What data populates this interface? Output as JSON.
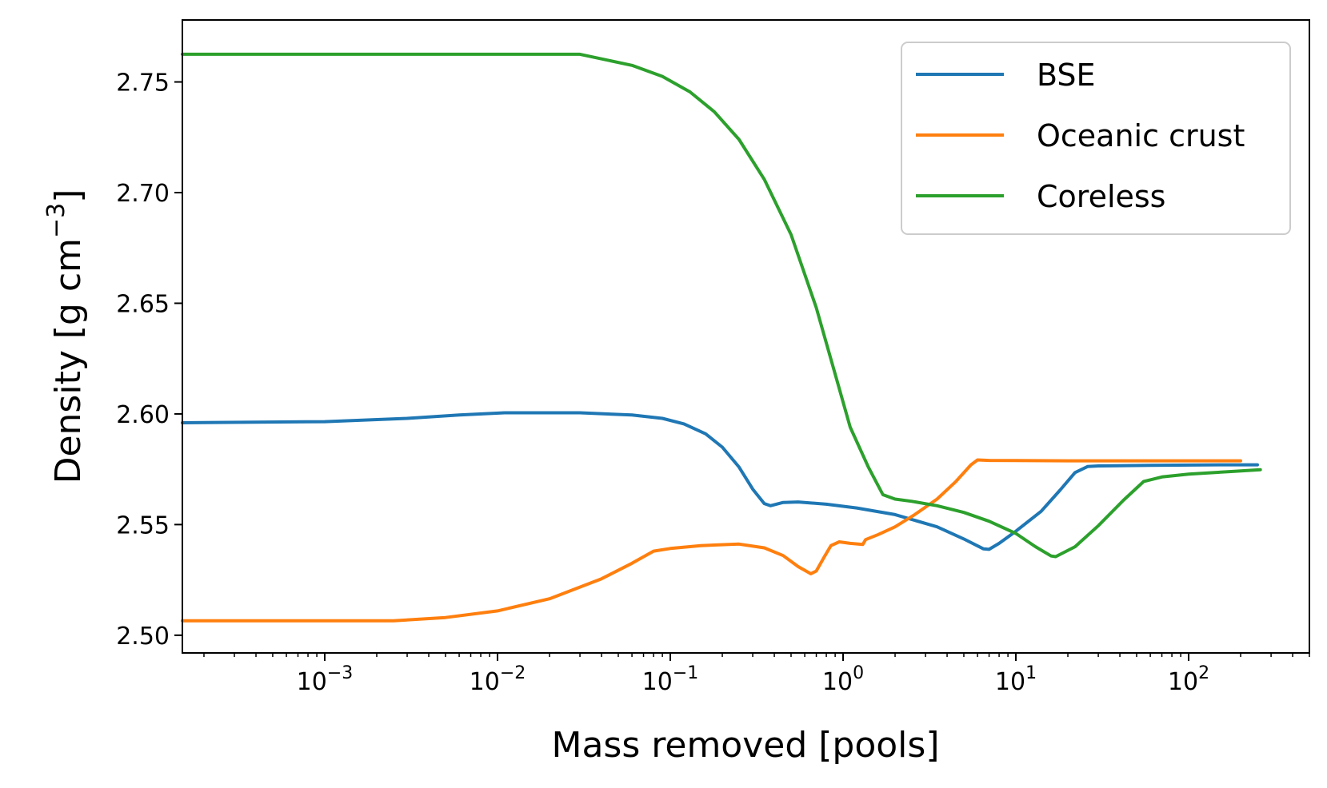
{
  "chart_data": {
    "type": "line",
    "title": "",
    "xlabel": "Mass removed [pools]",
    "ylabel": "Density [g cm",
    "ylabel_exponent": "−3",
    "ylabel_close": "]",
    "xscale": "log",
    "xlim": [
      0.00015,
      500
    ],
    "ylim": [
      2.492,
      2.778
    ],
    "grid": false,
    "legend_position": "top-right",
    "x_ticks": [
      {
        "value": 0.001,
        "base": "10",
        "exp": "−3"
      },
      {
        "value": 0.01,
        "base": "10",
        "exp": "−2"
      },
      {
        "value": 0.1,
        "base": "10",
        "exp": "−1"
      },
      {
        "value": 1,
        "base": "10",
        "exp": "0"
      },
      {
        "value": 10,
        "base": "10",
        "exp": "1"
      },
      {
        "value": 100,
        "base": "10",
        "exp": "2"
      }
    ],
    "y_ticks": [
      {
        "value": 2.5,
        "label": "2.50"
      },
      {
        "value": 2.55,
        "label": "2.55"
      },
      {
        "value": 2.6,
        "label": "2.60"
      },
      {
        "value": 2.65,
        "label": "2.65"
      },
      {
        "value": 2.7,
        "label": "2.70"
      },
      {
        "value": 2.75,
        "label": "2.75"
      }
    ],
    "series": [
      {
        "name": "BSE",
        "color": "#1f77b4",
        "points": [
          [
            0.00015,
            2.596
          ],
          [
            0.001,
            2.5965
          ],
          [
            0.003,
            2.598
          ],
          [
            0.006,
            2.5995
          ],
          [
            0.011,
            2.6005
          ],
          [
            0.03,
            2.6005
          ],
          [
            0.06,
            2.5995
          ],
          [
            0.09,
            2.598
          ],
          [
            0.12,
            2.5955
          ],
          [
            0.16,
            2.591
          ],
          [
            0.2,
            2.585
          ],
          [
            0.25,
            2.576
          ],
          [
            0.3,
            2.566
          ],
          [
            0.35,
            2.5595
          ],
          [
            0.38,
            2.5585
          ],
          [
            0.45,
            2.56
          ],
          [
            0.55,
            2.5602
          ],
          [
            0.8,
            2.5592
          ],
          [
            1.2,
            2.5575
          ],
          [
            2,
            2.5545
          ],
          [
            3.5,
            2.549
          ],
          [
            5,
            2.5435
          ],
          [
            6.5,
            2.539
          ],
          [
            7,
            2.5388
          ],
          [
            8,
            2.5415
          ],
          [
            10,
            2.547
          ],
          [
            14,
            2.556
          ],
          [
            18,
            2.5655
          ],
          [
            22,
            2.5735
          ],
          [
            26,
            2.5762
          ],
          [
            30,
            2.5765
          ],
          [
            60,
            2.5768
          ],
          [
            150,
            2.577
          ],
          [
            250,
            2.577
          ]
        ]
      },
      {
        "name": "Oceanic crust",
        "color": "#ff7f0e",
        "points": [
          [
            0.00015,
            2.5065
          ],
          [
            0.001,
            2.5065
          ],
          [
            0.0025,
            2.5065
          ],
          [
            0.005,
            2.508
          ],
          [
            0.01,
            2.511
          ],
          [
            0.02,
            2.5165
          ],
          [
            0.04,
            2.5255
          ],
          [
            0.06,
            2.5325
          ],
          [
            0.08,
            2.538
          ],
          [
            0.1,
            2.5392
          ],
          [
            0.15,
            2.5405
          ],
          [
            0.25,
            2.5412
          ],
          [
            0.35,
            2.5395
          ],
          [
            0.45,
            2.536
          ],
          [
            0.55,
            2.531
          ],
          [
            0.65,
            2.5278
          ],
          [
            0.7,
            2.529
          ],
          [
            0.78,
            2.5355
          ],
          [
            0.85,
            2.5405
          ],
          [
            0.95,
            2.5422
          ],
          [
            1.1,
            2.5415
          ],
          [
            1.3,
            2.541
          ],
          [
            1.35,
            2.5432
          ],
          [
            1.6,
            2.5455
          ],
          [
            2,
            2.549
          ],
          [
            2.6,
            2.5545
          ],
          [
            3.5,
            2.5615
          ],
          [
            4.5,
            2.5695
          ],
          [
            5.5,
            2.577
          ],
          [
            6,
            2.5792
          ],
          [
            7,
            2.579
          ],
          [
            20,
            2.5788
          ],
          [
            100,
            2.5788
          ],
          [
            200,
            2.5788
          ]
        ]
      },
      {
        "name": "Coreless",
        "color": "#2ca02c",
        "points": [
          [
            0.00015,
            2.7625
          ],
          [
            0.01,
            2.7625
          ],
          [
            0.03,
            2.7625
          ],
          [
            0.06,
            2.7575
          ],
          [
            0.09,
            2.7525
          ],
          [
            0.13,
            2.7455
          ],
          [
            0.18,
            2.7365
          ],
          [
            0.25,
            2.724
          ],
          [
            0.35,
            2.706
          ],
          [
            0.5,
            2.681
          ],
          [
            0.7,
            2.648
          ],
          [
            0.9,
            2.618
          ],
          [
            1.1,
            2.594
          ],
          [
            1.4,
            2.576
          ],
          [
            1.7,
            2.5635
          ],
          [
            2,
            2.5615
          ],
          [
            2.5,
            2.5605
          ],
          [
            3.5,
            2.5585
          ],
          [
            5,
            2.5555
          ],
          [
            7,
            2.5515
          ],
          [
            10,
            2.546
          ],
          [
            13,
            2.54
          ],
          [
            16,
            2.5358
          ],
          [
            17,
            2.5355
          ],
          [
            22,
            2.54
          ],
          [
            30,
            2.5495
          ],
          [
            42,
            2.561
          ],
          [
            55,
            2.5695
          ],
          [
            70,
            2.5715
          ],
          [
            100,
            2.5728
          ],
          [
            180,
            2.574
          ],
          [
            260,
            2.5748
          ]
        ]
      }
    ]
  }
}
